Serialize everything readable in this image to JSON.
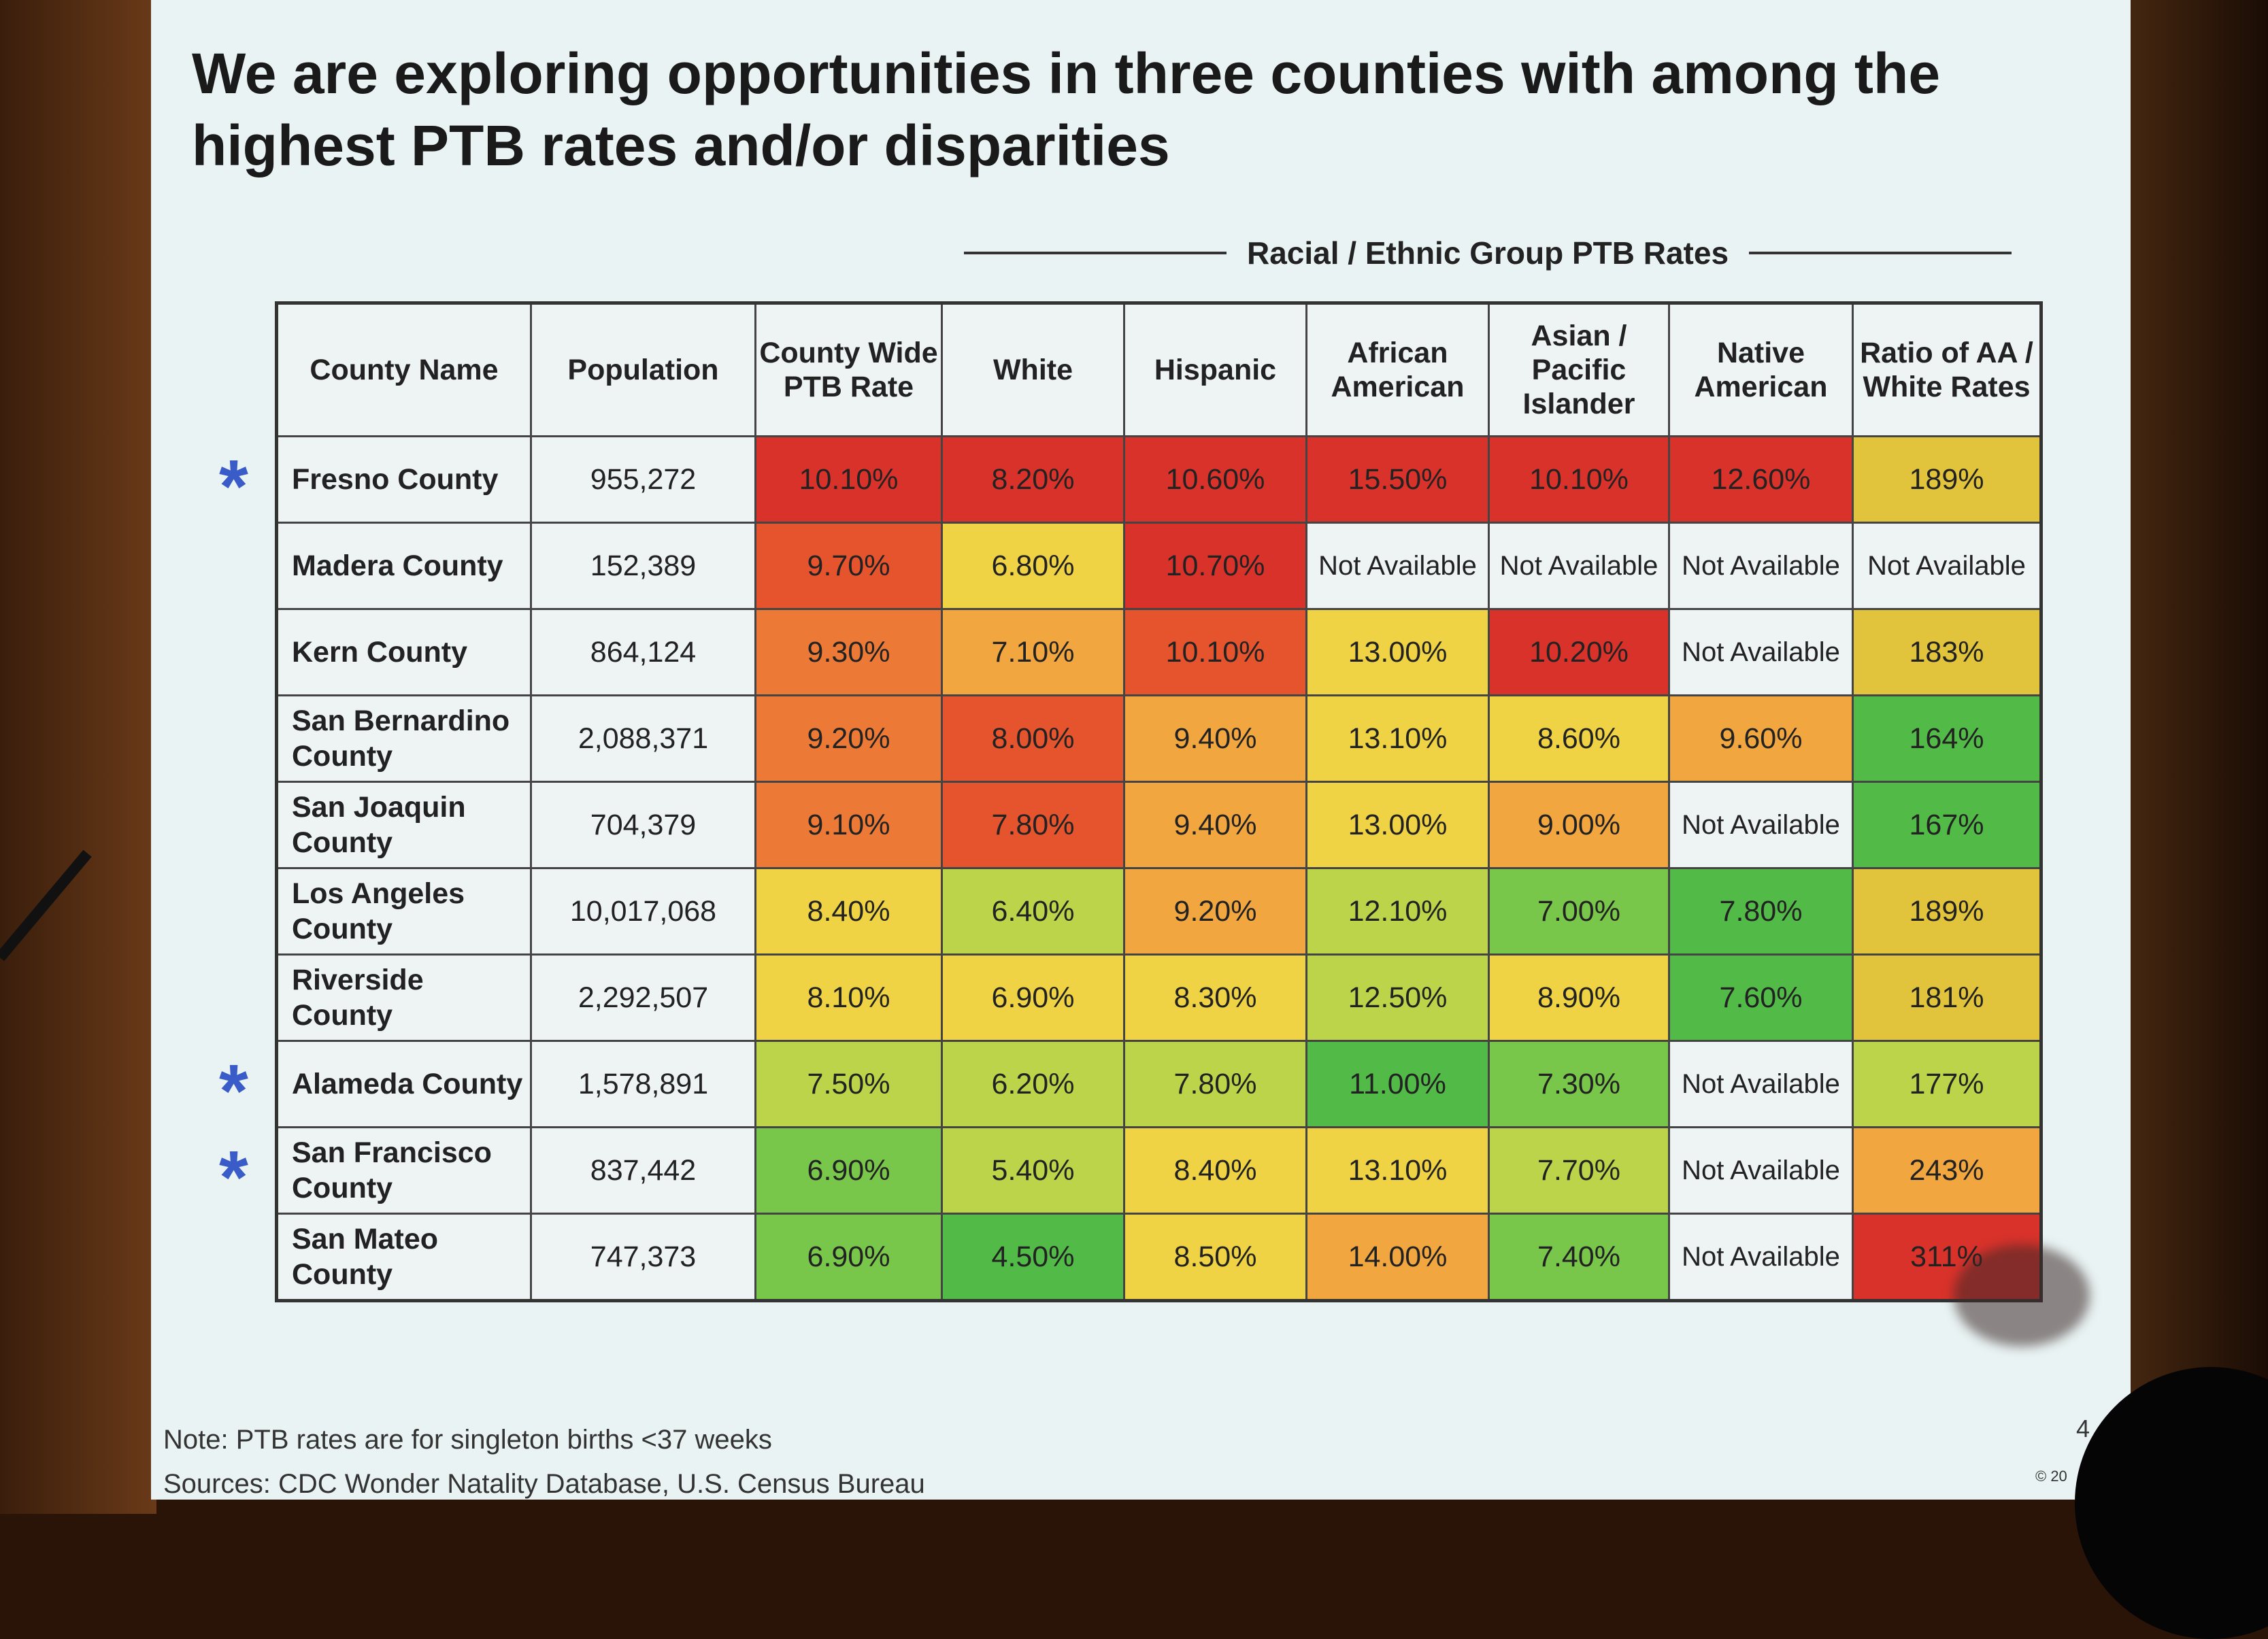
{
  "title": "We are exploring opportunities in three counties with among the highest PTB rates and/or disparities",
  "group_header": "Racial / Ethnic Group PTB Rates",
  "columns": [
    "County Name",
    "Population",
    "County Wide PTB Rate",
    "White",
    "Hispanic",
    "African American",
    "Asian / Pacific Islander",
    "Native American",
    "Ratio of AA / White Rates"
  ],
  "colors": {
    "red": "#d9322a",
    "orred": "#e6542e",
    "orange": "#ec7a36",
    "lorange": "#f2a640",
    "yellow": "#efd344",
    "ygreen": "#bcd44a",
    "green": "#78c64a",
    "bgreen": "#52bb48",
    "gold": "#e2c33c",
    "white": "#eef3f3"
  },
  "rows": [
    {
      "name": "Fresno County",
      "starred": true,
      "population": "955,272",
      "cells": [
        [
          "10.10%",
          "red"
        ],
        [
          "8.20%",
          "red"
        ],
        [
          "10.60%",
          "red"
        ],
        [
          "15.50%",
          "red"
        ],
        [
          "10.10%",
          "red"
        ],
        [
          "12.60%",
          "red"
        ],
        [
          "189%",
          "gold"
        ]
      ]
    },
    {
      "name": "Madera County",
      "starred": false,
      "population": "152,389",
      "cells": [
        [
          "9.70%",
          "orred"
        ],
        [
          "6.80%",
          "yellow"
        ],
        [
          "10.70%",
          "red"
        ],
        [
          "Not Available",
          "white"
        ],
        [
          "Not Available",
          "white"
        ],
        [
          "Not Available",
          "white"
        ],
        [
          "Not Available",
          "white"
        ]
      ]
    },
    {
      "name": "Kern County",
      "starred": false,
      "population": "864,124",
      "cells": [
        [
          "9.30%",
          "orange"
        ],
        [
          "7.10%",
          "lorange"
        ],
        [
          "10.10%",
          "orred"
        ],
        [
          "13.00%",
          "yellow"
        ],
        [
          "10.20%",
          "red"
        ],
        [
          "Not Available",
          "white"
        ],
        [
          "183%",
          "gold"
        ]
      ]
    },
    {
      "name": "San Bernardino County",
      "starred": false,
      "population": "2,088,371",
      "cells": [
        [
          "9.20%",
          "orange"
        ],
        [
          "8.00%",
          "orred"
        ],
        [
          "9.40%",
          "lorange"
        ],
        [
          "13.10%",
          "yellow"
        ],
        [
          "8.60%",
          "yellow"
        ],
        [
          "9.60%",
          "lorange"
        ],
        [
          "164%",
          "bgreen"
        ]
      ]
    },
    {
      "name": "San Joaquin County",
      "starred": false,
      "population": "704,379",
      "cells": [
        [
          "9.10%",
          "orange"
        ],
        [
          "7.80%",
          "orred"
        ],
        [
          "9.40%",
          "lorange"
        ],
        [
          "13.00%",
          "yellow"
        ],
        [
          "9.00%",
          "lorange"
        ],
        [
          "Not Available",
          "white"
        ],
        [
          "167%",
          "bgreen"
        ]
      ]
    },
    {
      "name": "Los Angeles County",
      "starred": false,
      "population": "10,017,068",
      "cells": [
        [
          "8.40%",
          "yellow"
        ],
        [
          "6.40%",
          "ygreen"
        ],
        [
          "9.20%",
          "lorange"
        ],
        [
          "12.10%",
          "ygreen"
        ],
        [
          "7.00%",
          "green"
        ],
        [
          "7.80%",
          "bgreen"
        ],
        [
          "189%",
          "gold"
        ]
      ]
    },
    {
      "name": "Riverside County",
      "starred": false,
      "population": "2,292,507",
      "cells": [
        [
          "8.10%",
          "yellow"
        ],
        [
          "6.90%",
          "yellow"
        ],
        [
          "8.30%",
          "yellow"
        ],
        [
          "12.50%",
          "ygreen"
        ],
        [
          "8.90%",
          "yellow"
        ],
        [
          "7.60%",
          "bgreen"
        ],
        [
          "181%",
          "gold"
        ]
      ]
    },
    {
      "name": "Alameda County",
      "starred": true,
      "population": "1,578,891",
      "cells": [
        [
          "7.50%",
          "ygreen"
        ],
        [
          "6.20%",
          "ygreen"
        ],
        [
          "7.80%",
          "ygreen"
        ],
        [
          "11.00%",
          "bgreen"
        ],
        [
          "7.30%",
          "green"
        ],
        [
          "Not Available",
          "white"
        ],
        [
          "177%",
          "ygreen"
        ]
      ]
    },
    {
      "name": "San Francisco County",
      "starred": true,
      "population": "837,442",
      "cells": [
        [
          "6.90%",
          "green"
        ],
        [
          "5.40%",
          "ygreen"
        ],
        [
          "8.40%",
          "yellow"
        ],
        [
          "13.10%",
          "yellow"
        ],
        [
          "7.70%",
          "ygreen"
        ],
        [
          "Not Available",
          "white"
        ],
        [
          "243%",
          "lorange"
        ]
      ]
    },
    {
      "name": "San Mateo County",
      "starred": false,
      "population": "747,373",
      "cells": [
        [
          "6.90%",
          "green"
        ],
        [
          "4.50%",
          "bgreen"
        ],
        [
          "8.50%",
          "yellow"
        ],
        [
          "14.00%",
          "lorange"
        ],
        [
          "7.40%",
          "green"
        ],
        [
          "Not Available",
          "white"
        ],
        [
          "311%",
          "red"
        ]
      ]
    }
  ],
  "star_symbol": "*",
  "note": "Note: PTB rates are for singleton births <37 weeks",
  "sources": "Sources: CDC Wonder Natality Database, U.S. Census Bureau",
  "page_number": "4",
  "copyright": "© 20"
}
